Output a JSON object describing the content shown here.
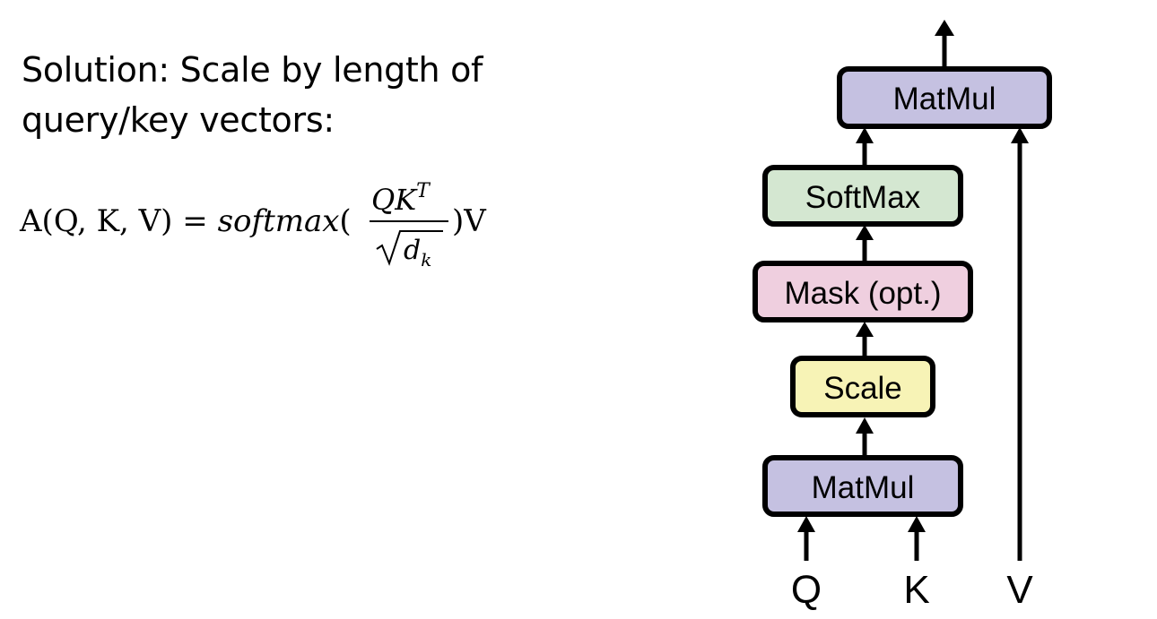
{
  "text": {
    "line1": "Solution: Scale by length of",
    "line2": "query/key vectors:"
  },
  "formula": {
    "lhs": "A(Q, K, V) = ",
    "func": "softmax",
    "open_paren": "(",
    "numerator_base": "QK",
    "numerator_sup": "T",
    "denominator_base": "d",
    "denominator_sub": "k",
    "close": ")V"
  },
  "diagram": {
    "boxes": {
      "matmul_top": {
        "label": "MatMul",
        "color": "#c5c1e1"
      },
      "softmax": {
        "label": "SoftMax",
        "color": "#d4e7d1"
      },
      "mask": {
        "label": "Mask (opt.)",
        "color": "#efcfdf"
      },
      "scale": {
        "label": "Scale",
        "color": "#f7f3b6"
      },
      "matmul_bottom": {
        "label": "MatMul",
        "color": "#c5c1e1"
      }
    },
    "inputs": {
      "q": "Q",
      "k": "K",
      "v": "V"
    }
  }
}
